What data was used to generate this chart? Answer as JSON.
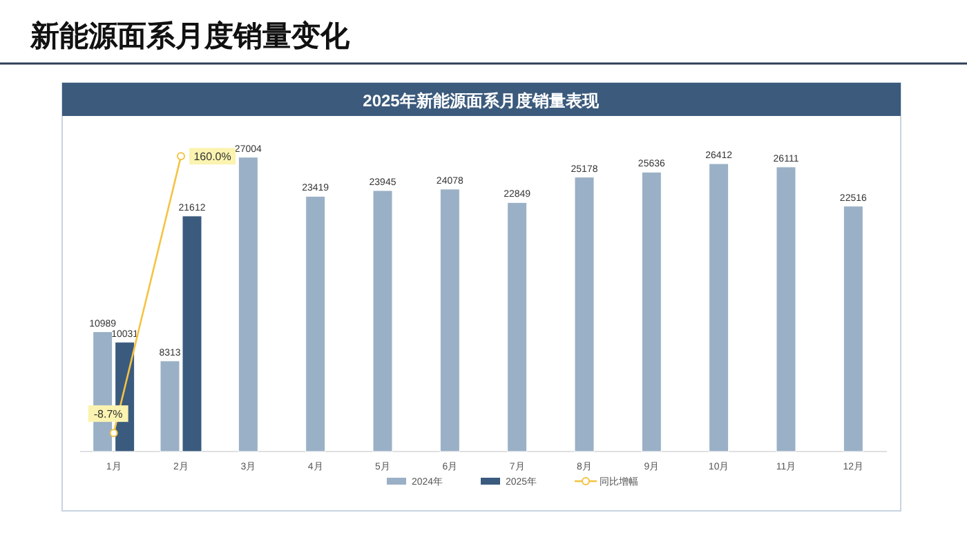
{
  "chart_data": {
    "type": "bar",
    "title": "新能源面系月度销量变化",
    "subtitle": "2025年新能源面系月度销量表现",
    "categories": [
      "1月",
      "2月",
      "3月",
      "4月",
      "5月",
      "6月",
      "7月",
      "8月",
      "9月",
      "10月",
      "11月",
      "12月"
    ],
    "series": [
      {
        "name": "2024年",
        "color": "#9ab0c6",
        "values": [
          10989,
          8313,
          27004,
          23419,
          23945,
          24078,
          22849,
          25178,
          25636,
          26412,
          26111,
          22516
        ]
      },
      {
        "name": "2025年",
        "color": "#3a5a7e",
        "values": [
          10031,
          21612,
          null,
          null,
          null,
          null,
          null,
          null,
          null,
          null,
          null,
          null
        ]
      },
      {
        "name": "同比增幅",
        "type": "line",
        "axis": "y2",
        "color": "#f5c342",
        "marker": "circle",
        "values": [
          -8.7,
          160.0,
          null,
          null,
          null,
          null,
          null,
          null,
          null,
          null,
          null,
          null
        ],
        "value_labels": [
          "-8.7%",
          "160.0%",
          null,
          null,
          null,
          null,
          null,
          null,
          null,
          null,
          null,
          null
        ]
      }
    ],
    "ylim": [
      0,
      28000
    ],
    "y2lim": [
      -20,
      166
    ],
    "data_labels": true,
    "grid": false,
    "legend": "bottom",
    "tick_labels": "x"
  }
}
